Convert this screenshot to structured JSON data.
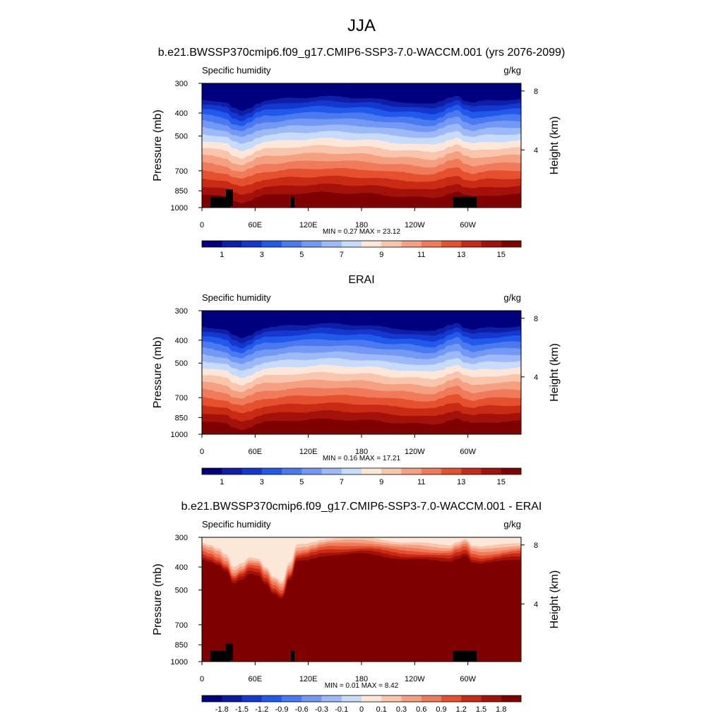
{
  "figure": {
    "title": "JJA"
  },
  "chart_data": [
    {
      "type": "heatmap",
      "title": "b.e21.BWSSP370cmip6.f09_g17.CMIP6-SSP3-7.0-WACCM.001 (yrs 2076-2099)",
      "left_label": "Specific humidity",
      "units": "g/kg",
      "ylabel": "Pressure (mb)",
      "ylabel_right": "Height (km)",
      "x_ticks": [
        "0",
        "60E",
        "120E",
        "180",
        "120W",
        "60W"
      ],
      "y_ticks": [
        "300",
        "400",
        "500",
        "700",
        "850",
        "1000"
      ],
      "y_right_ticks": [
        "8",
        "4"
      ],
      "min_max_text": "MIN =   0.27  MAX =  23.12",
      "colorbar_labels": [
        "1",
        "3",
        "5",
        "7",
        "9",
        "11",
        "13",
        "15"
      ],
      "palette": [
        "#00007f",
        "#0d1fa8",
        "#1437d0",
        "#2159ea",
        "#4a79f0",
        "#7399f4",
        "#9eb9f7",
        "#c8dbfa",
        "#fde7d9",
        "#fac5ad",
        "#f6a082",
        "#f17a5a",
        "#e5502f",
        "#c82a14",
        "#a3120a",
        "#7f0000"
      ]
    },
    {
      "type": "heatmap",
      "title": "ERAI",
      "left_label": "Specific humidity",
      "units": "g/kg",
      "ylabel": "Pressure (mb)",
      "ylabel_right": "Height (km)",
      "x_ticks": [
        "0",
        "60E",
        "120E",
        "180",
        "120W",
        "60W"
      ],
      "y_ticks": [
        "300",
        "400",
        "500",
        "700",
        "850",
        "1000"
      ],
      "y_right_ticks": [
        "8",
        "4"
      ],
      "min_max_text": "MIN =   0.16  MAX =  17.21",
      "colorbar_labels": [
        "1",
        "3",
        "5",
        "7",
        "9",
        "11",
        "13",
        "15"
      ],
      "palette": [
        "#00007f",
        "#0d1fa8",
        "#1437d0",
        "#2159ea",
        "#4a79f0",
        "#7399f4",
        "#9eb9f7",
        "#c8dbfa",
        "#fde7d9",
        "#fac5ad",
        "#f6a082",
        "#f17a5a",
        "#e5502f",
        "#c82a14",
        "#a3120a",
        "#7f0000"
      ]
    },
    {
      "type": "heatmap",
      "title": "b.e21.BWSSP370cmip6.f09_g17.CMIP6-SSP3-7.0-WACCM.001 - ERAI",
      "left_label": "Specific humidity",
      "units": "g/kg",
      "ylabel": "Pressure (mb)",
      "ylabel_right": "Height (km)",
      "x_ticks": [
        "0",
        "60E",
        "120E",
        "180",
        "120W",
        "60W"
      ],
      "y_ticks": [
        "300",
        "400",
        "500",
        "700",
        "850",
        "1000"
      ],
      "y_right_ticks": [
        "8",
        "4"
      ],
      "min_max_text": "MIN =   0.01  MAX =   8.42",
      "colorbar_labels": [
        "-1.8",
        "-1.5",
        "-1.2",
        "-0.9",
        "-0.6",
        "-0.3",
        "-0.1",
        "0",
        "0.1",
        "0.3",
        "0.6",
        "0.9",
        "1.2",
        "1.5",
        "1.8"
      ],
      "palette": [
        "#00007f",
        "#0b1aa1",
        "#1437d0",
        "#2159ea",
        "#4a79f0",
        "#7399f4",
        "#9eb9f7",
        "#c8dbfa",
        "#fde7d9",
        "#fac5ad",
        "#f6a082",
        "#f17a5a",
        "#e5502f",
        "#c82a14",
        "#a3120a",
        "#7f0000"
      ]
    }
  ]
}
